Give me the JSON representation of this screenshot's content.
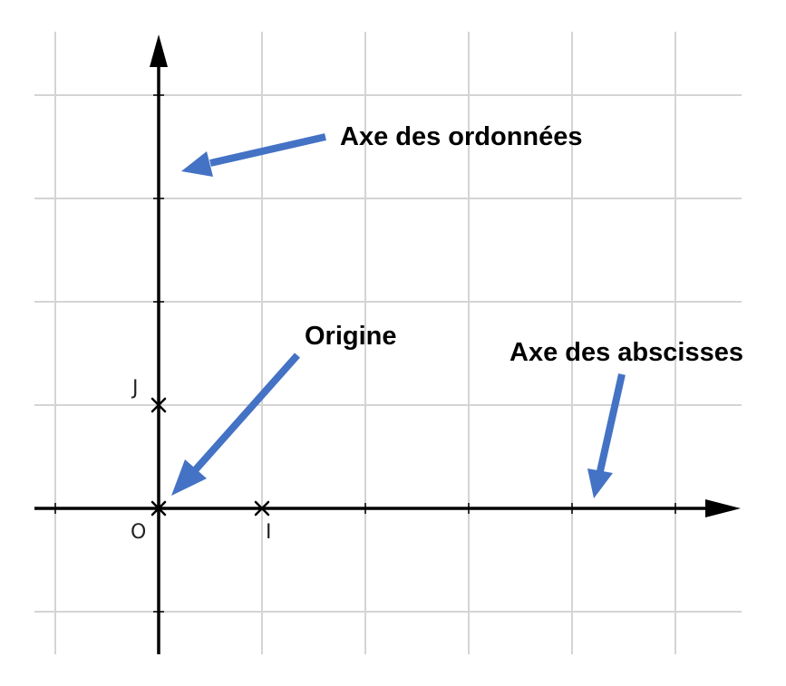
{
  "points": {
    "origin_label": "O",
    "i_label": "I",
    "j_label": "J"
  },
  "annotations": {
    "ordinate_axis": "Axe des ordonnées",
    "origin": "Origine",
    "abscissa_axis": "Axe des abscisses"
  },
  "colors": {
    "pointer": "#4472c4",
    "grid": "#d4d4d4",
    "axis": "#000000"
  }
}
